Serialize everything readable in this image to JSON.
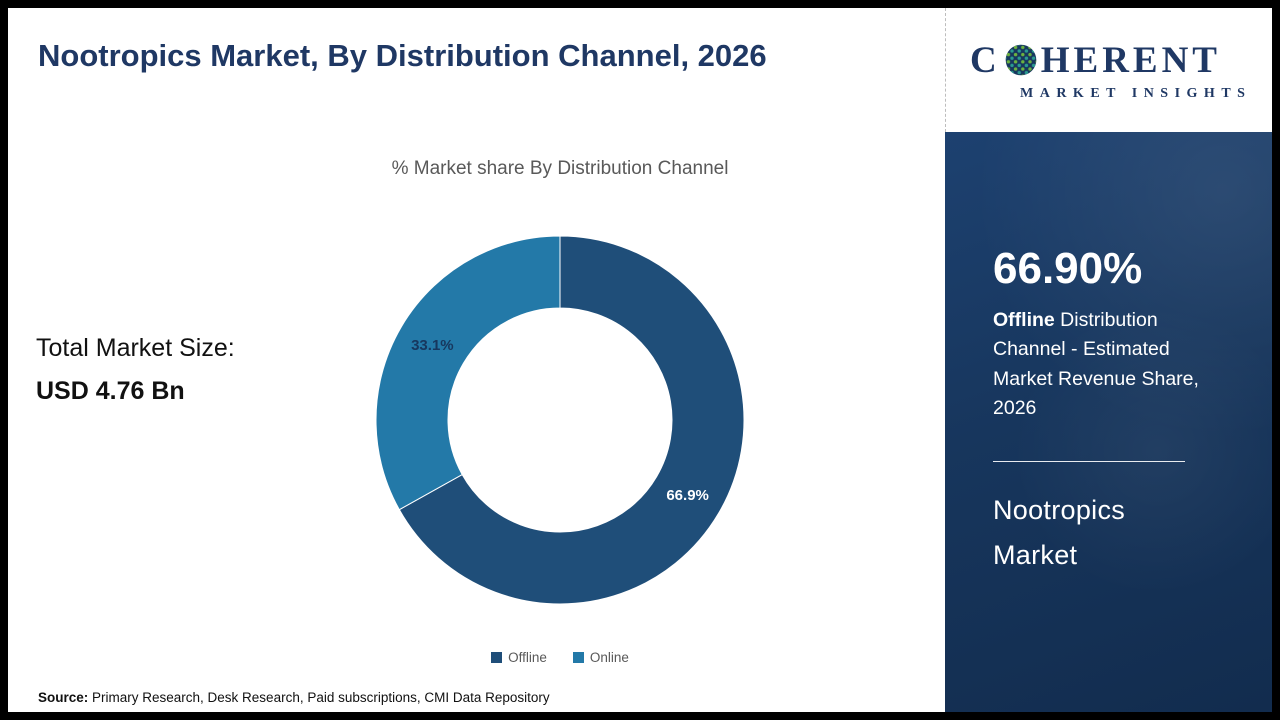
{
  "header": {
    "title": "Nootropics Market, By Distribution Channel, 2026"
  },
  "chart_data": {
    "type": "pie",
    "subtype": "donut",
    "title": "% Market share By Distribution Channel",
    "categories": [
      "Offline",
      "Online"
    ],
    "values": [
      66.9,
      33.1
    ],
    "slice_labels": [
      "66.9%",
      "33.1%"
    ],
    "colors": [
      "#1f4e79",
      "#2379a8"
    ],
    "slice_label_colors": [
      "#ffffff",
      "#17375e"
    ],
    "legend_position": "bottom",
    "start_angle_deg": 0,
    "donut_hole_ratio": 0.61
  },
  "left_panel": {
    "total_market_label": "Total Market Size:",
    "total_market_value": "USD 4.76 Bn",
    "source_label": "Source:",
    "source_text": " Primary Research, Desk Research, Paid subscriptions, CMI Data Repository"
  },
  "sidebar": {
    "logo_part1": "C",
    "logo_part2": "HERENT",
    "logo_subtitle": "MARKET INSIGHTS",
    "stat_value": "66.90%",
    "stat_desc_bold": "Offline",
    "stat_desc_rest": " Distribution Channel - Estimated Market Revenue Share, 2026",
    "market_name_line1": "Nootropics",
    "market_name_line2": "Market"
  }
}
